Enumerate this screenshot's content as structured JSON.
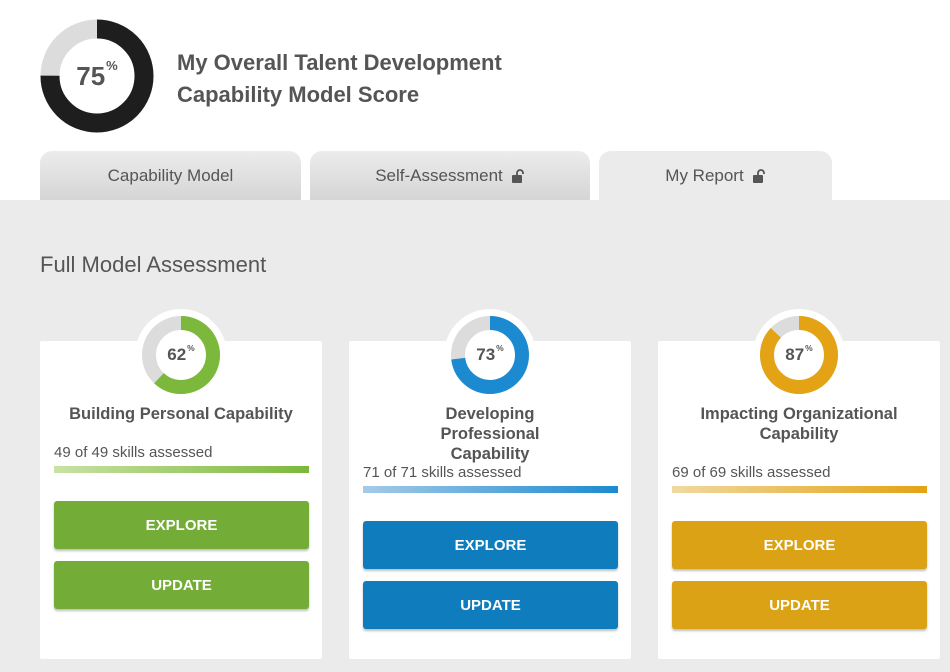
{
  "header": {
    "overall_score": "75",
    "overall_percent_sign": "%",
    "overall_fraction": 0.75,
    "title_line1": "My Overall Talent Development",
    "title_line2": "Capability Model Score"
  },
  "tabs": [
    {
      "label": "Capability Model",
      "locked": false
    },
    {
      "label": "Self-Assessment",
      "locked": true
    },
    {
      "label": "My Report",
      "locked": true
    }
  ],
  "section_title": "Full Model Assessment",
  "cards": [
    {
      "score": "62",
      "percent_sign": "%",
      "fraction": 0.62,
      "title": "Building Personal Capability",
      "skills": "49 of 49 skills assessed",
      "color": "#7cb83b",
      "light_color": "#c8e2a4",
      "explore_label": "EXPLORE",
      "update_label": "UPDATE"
    },
    {
      "score": "73",
      "percent_sign": "%",
      "fraction": 0.73,
      "title": "Developing Professional Capability",
      "skills": "71 of 71 skills assessed",
      "color": "#1b8ad0",
      "light_color": "#a5cbe8",
      "explore_label": "EXPLORE",
      "update_label": "UPDATE"
    },
    {
      "score": "87",
      "percent_sign": "%",
      "fraction": 0.87,
      "title": "Impacting Organizational Capability",
      "skills": "69 of 69 skills assessed",
      "color": "#e3a314",
      "light_color": "#f0d9a0",
      "explore_label": "EXPLORE",
      "update_label": "UPDATE"
    }
  ],
  "colors": {
    "donut_track": "#dcdcdc",
    "overall_ring": "#1e1e1e",
    "btn_green": "#73ad37",
    "btn_blue": "#0f7dbd",
    "btn_gold": "#dba216"
  }
}
